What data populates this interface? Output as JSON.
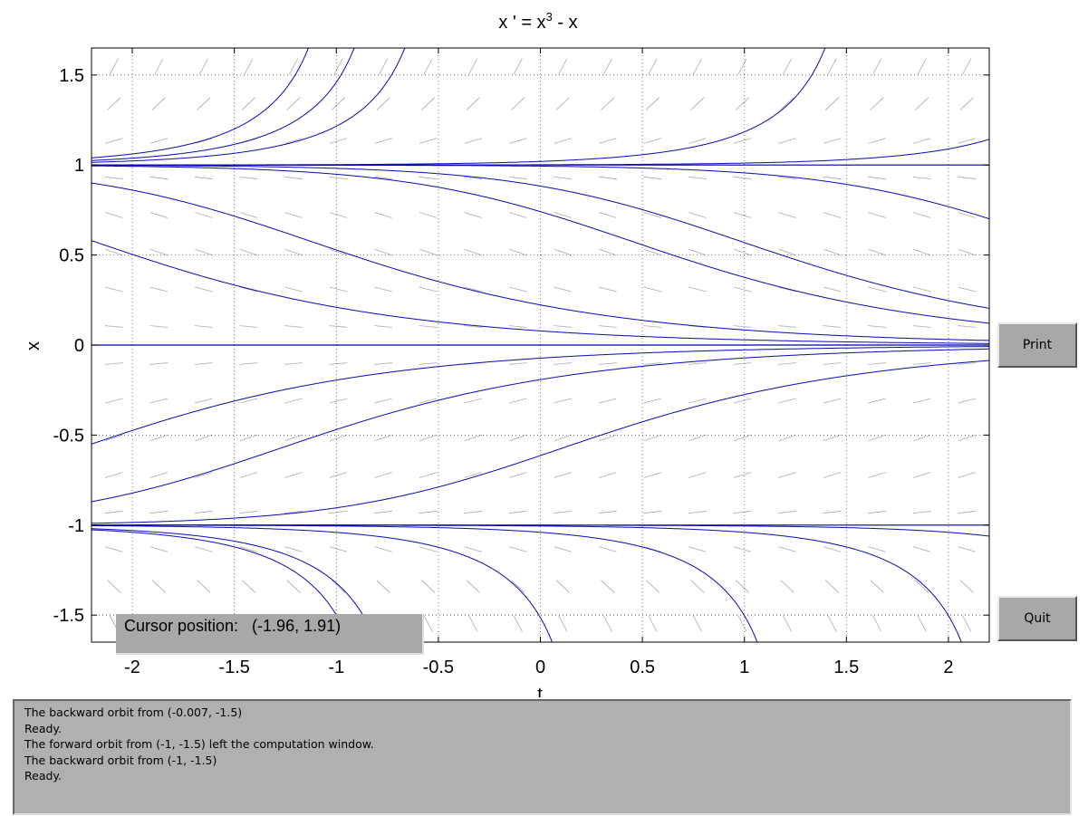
{
  "chart_data": {
    "type": "line",
    "title": "x ' = x",
    "title_superscript": "3",
    "title_suffix": " - x",
    "equation": "x' = x^3 - x",
    "xlabel": "t",
    "ylabel": "x",
    "xlim": [
      -2.2,
      2.2
    ],
    "ylim": [
      -1.65,
      1.65
    ],
    "xticks": [
      "-2",
      "-1.5",
      "-1",
      "-0.5",
      "0",
      "0.5",
      "1",
      "1.5",
      "2"
    ],
    "yticks": [
      "1.5",
      "1",
      "0.5",
      "0",
      "-0.5",
      "-1",
      "-1.5"
    ],
    "grid": true,
    "direction_field": true,
    "equilibria": [
      -1,
      0,
      1
    ],
    "solution_curves": [
      {
        "t0": -2.2,
        "x0": 0.9
      },
      {
        "t0": -2.2,
        "x0": 0.58
      },
      {
        "t0": -2.2,
        "x0": 0.995
      },
      {
        "t0": -0.6,
        "x0": 0.96
      },
      {
        "t0": 0.8,
        "x0": 0.97
      },
      {
        "t0": -2.2,
        "x0": 1.015
      },
      {
        "t0": -2.2,
        "x0": 1.025
      },
      {
        "t0": -2.2,
        "x0": 1.04
      },
      {
        "t0": 0.0,
        "x0": 1.02
      },
      {
        "t0": 1.3,
        "x0": 1.02
      },
      {
        "t0": -2.2,
        "x0": -0.55
      },
      {
        "t0": -2.2,
        "x0": -0.87
      },
      {
        "t0": -2.2,
        "x0": -0.99
      },
      {
        "t0": -0.007,
        "x0": -1.5
      },
      {
        "t0": -1.0,
        "x0": -1.5
      },
      {
        "t0": -2.2,
        "x0": -1.02
      },
      {
        "t0": 0.0,
        "x0": -1.04
      },
      {
        "t0": 1.0,
        "x0": -1.04
      },
      {
        "t0": 2.0,
        "x0": -1.04
      }
    ]
  },
  "buttons": {
    "print": "Print",
    "quit": "Quit"
  },
  "cursor": {
    "label": "Cursor position:   (-1.96, 1.91)"
  },
  "messages": [
    "The backward orbit from (-0.007, -1.5)",
    "Ready.",
    "The forward orbit from (-1, -1.5) left the computation window.",
    "The backward orbit from (-1, -1.5)",
    "Ready."
  ]
}
